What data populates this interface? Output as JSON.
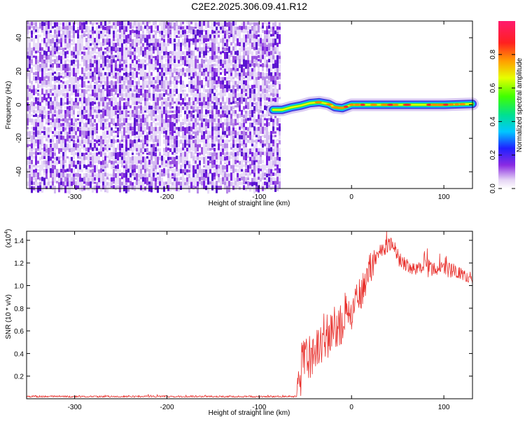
{
  "title": "C2E2.2025.306.09.41.R12",
  "colors": {
    "snr_line": "#e8302c",
    "noise_purple": "#8a2be2",
    "ridge_red": "#ff2a2a"
  },
  "chart_data": [
    {
      "type": "heatmap",
      "name": "spectrogram",
      "xlabel": "Height of straight line (km)",
      "ylabel": "Frequency (Hz)",
      "xlim": [
        -352,
        131
      ],
      "ylim": [
        -50,
        50
      ],
      "xticks": [
        -300,
        -200,
        -100,
        0,
        100
      ],
      "yticks": [
        -40,
        -20,
        0,
        20,
        40
      ],
      "noise_region_x": [
        -352,
        -78
      ],
      "ridge": {
        "x": [
          -85,
          -75,
          -65,
          -55,
          -45,
          -35,
          -25,
          -18,
          -10,
          -5,
          0,
          20,
          60,
          100,
          131
        ],
        "freq": [
          -3,
          -3,
          -1.5,
          -0.5,
          1,
          1.5,
          0.5,
          -1.5,
          -2,
          -1,
          0,
          0,
          0,
          0,
          0.5
        ]
      },
      "colorbar": {
        "label": "Normalized spectral amplitude",
        "range": [
          0,
          1
        ],
        "ticks": [
          0.0,
          0.2,
          0.4,
          0.6,
          0.8
        ],
        "tick_labels": [
          "0.0",
          "0.2",
          "0.4",
          "0.6",
          "0.8"
        ]
      }
    },
    {
      "type": "line",
      "name": "snr",
      "xlabel": "Height of straight line (km)",
      "ylabel": "SNR (10 * v/v)",
      "y_multiplier_label": "(x10",
      "y_multiplier_exp": "4",
      "xlim": [
        -352,
        131
      ],
      "ylim": [
        0,
        1.48
      ],
      "xticks": [
        -300,
        -200,
        -100,
        0,
        100
      ],
      "yticks": [
        0.2,
        0.4,
        0.6,
        0.8,
        1.0,
        1.2,
        1.4
      ],
      "ytick_labels": [
        "0.2",
        "0.4",
        "0.6",
        "0.8",
        "1.0",
        "1.2",
        "1.4"
      ],
      "envelope": {
        "x": [
          -352,
          -60,
          -58,
          -55,
          -50,
          -40,
          -30,
          -20,
          -10,
          0,
          10,
          20,
          30,
          40,
          45,
          50,
          60,
          70,
          80,
          90,
          100,
          110,
          120,
          131
        ],
        "base": [
          0.02,
          0.02,
          0.12,
          0.25,
          0.32,
          0.42,
          0.5,
          0.6,
          0.7,
          0.78,
          0.95,
          1.15,
          1.3,
          1.36,
          1.38,
          1.25,
          1.18,
          1.14,
          1.15,
          1.17,
          1.15,
          1.12,
          1.1,
          1.05
        ],
        "amp": [
          0.015,
          0.015,
          0.2,
          0.5,
          0.45,
          0.35,
          0.38,
          0.4,
          0.42,
          0.35,
          0.35,
          0.3,
          0.15,
          0.12,
          0.1,
          0.15,
          0.12,
          0.12,
          0.18,
          0.15,
          0.12,
          0.15,
          0.1,
          0.1
        ]
      }
    }
  ]
}
